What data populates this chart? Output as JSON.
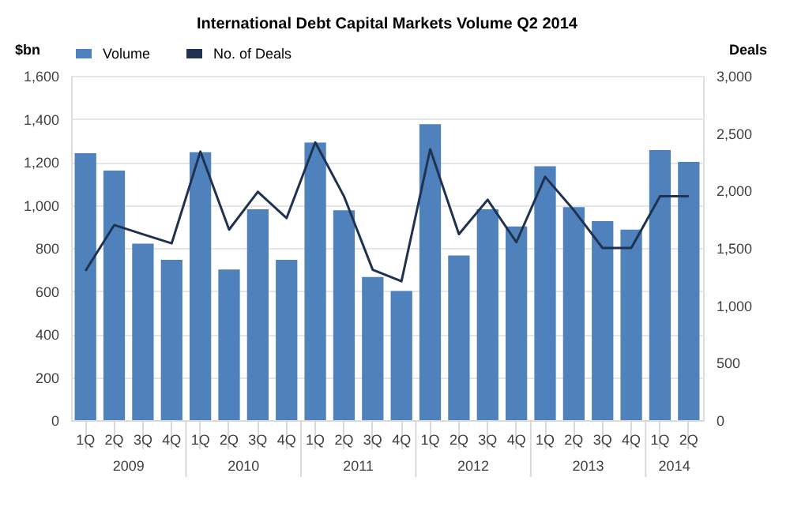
{
  "chart_data": {
    "type": "bar",
    "title": "International Debt Capital Markets Volume Q2 2014",
    "categories": [
      "1Q",
      "2Q",
      "3Q",
      "4Q",
      "1Q",
      "2Q",
      "3Q",
      "4Q",
      "1Q",
      "2Q",
      "3Q",
      "4Q",
      "1Q",
      "2Q",
      "3Q",
      "4Q",
      "1Q",
      "2Q",
      "3Q",
      "4Q",
      "1Q",
      "2Q"
    ],
    "series": [
      {
        "name": "Volume",
        "color": "#4f81bd",
        "values": [
          1240,
          1160,
          820,
          745,
          1245,
          700,
          980,
          745,
          1290,
          975,
          665,
          600,
          1375,
          765,
          980,
          900,
          1180,
          990,
          925,
          885,
          1255,
          1200
        ]
      },
      {
        "name": "No. of Deals",
        "type": "line",
        "axis": "y2",
        "color": "#1f3350",
        "values": [
          1300,
          1700,
          1620,
          1540,
          2340,
          1660,
          1990,
          1760,
          2420,
          1950,
          1310,
          1210,
          2360,
          1620,
          1920,
          1550,
          2120,
          1830,
          1500,
          1500,
          1950,
          1950
        ]
      }
    ],
    "ylabel": "$bn",
    "y2label": "Deals",
    "ylim": [
      0,
      1600
    ],
    "yticks": [
      {
        "value": 0,
        "label": "0"
      },
      {
        "value": 200,
        "label": "200"
      },
      {
        "value": 400,
        "label": "400"
      },
      {
        "value": 600,
        "label": "600"
      },
      {
        "value": 800,
        "label": "800"
      },
      {
        "value": 1000,
        "label": "1,000"
      },
      {
        "value": 1200,
        "label": "1,200"
      },
      {
        "value": 1400,
        "label": "1,400"
      },
      {
        "value": 1600,
        "label": "1,600"
      }
    ],
    "y2lim": [
      0,
      3000
    ],
    "y2ticks": [
      {
        "value": 0,
        "label": "0"
      },
      {
        "value": 500,
        "label": "500"
      },
      {
        "value": 1000,
        "label": "1,000"
      },
      {
        "value": 1500,
        "label": "1,500"
      },
      {
        "value": 2000,
        "label": "2,000"
      },
      {
        "value": 2500,
        "label": "2,500"
      },
      {
        "value": 3000,
        "label": "3,000"
      }
    ],
    "annotations": [
      "2009",
      "2010",
      "2011",
      "2012",
      "2013",
      "2014"
    ],
    "grid": "y",
    "legend": "top",
    "marker": "none",
    "line_style": "solid"
  }
}
